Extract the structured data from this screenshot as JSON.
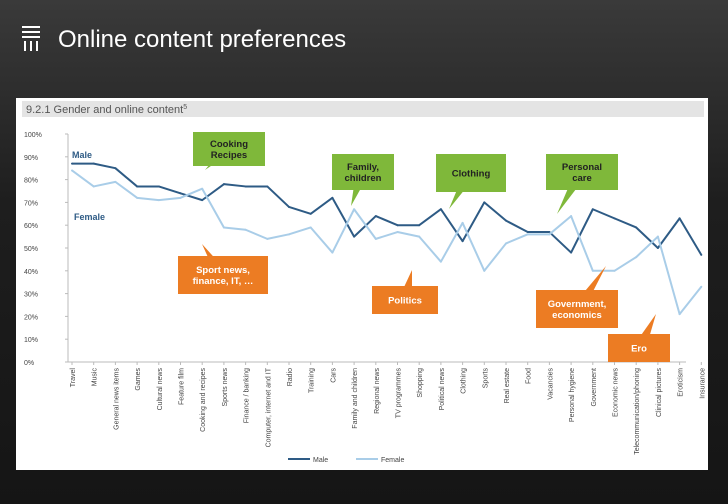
{
  "slide": {
    "title": "Online content preferences"
  },
  "chart_data": {
    "type": "line",
    "title": "9.2.1 Gender and online content",
    "title_sup": "5",
    "ylim": [
      0,
      100
    ],
    "y_ticks": [
      "0%",
      "10%",
      "20%",
      "30%",
      "40%",
      "50%",
      "60%",
      "70%",
      "80%",
      "90%",
      "100%"
    ],
    "grid": false,
    "legend_position": "bottom",
    "categories": [
      "Travel",
      "Music",
      "General news items",
      "Games",
      "Cultural news",
      "Feature film",
      "Cooking and recipes",
      "Sports news",
      "Finance / banking",
      "Computer, internet and IT",
      "Radio",
      "Training",
      "Cars",
      "Family and children",
      "Regional news",
      "TV programmes",
      "Shopping",
      "Political news",
      "Clothing",
      "Sports",
      "Real estate",
      "Food",
      "Vacancies",
      "Personal hygiene",
      "Government",
      "Economic news",
      "Telecommunication/phoning",
      "Clinical pictures",
      "Eroticism",
      "Insurance"
    ],
    "series": [
      {
        "name": "Male",
        "color": "#2e5b85",
        "values": [
          87,
          87,
          85,
          77,
          77,
          74,
          71,
          78,
          77,
          77,
          68,
          65,
          72,
          55,
          64,
          60,
          60,
          67,
          53,
          70,
          62,
          57,
          57,
          48,
          67,
          63,
          59,
          50,
          63,
          47
        ]
      },
      {
        "name": "Female",
        "color": "#a9cde8",
        "values": [
          84,
          77,
          79,
          72,
          71,
          72,
          76,
          59,
          58,
          54,
          56,
          59,
          48,
          67,
          54,
          57,
          55,
          44,
          61,
          40,
          52,
          56,
          56,
          64,
          40,
          40,
          46,
          55,
          21,
          33
        ]
      }
    ],
    "series_labels": [
      {
        "text": "Male"
      },
      {
        "text": "Female"
      }
    ],
    "annotations": [
      {
        "lines": [
          "Cooking",
          "Recipes"
        ]
      },
      {
        "lines": [
          "Family,",
          "children"
        ]
      },
      {
        "lines": [
          "Clothing"
        ]
      },
      {
        "lines": [
          "Personal",
          "care"
        ]
      },
      {
        "lines": [
          "Sport news,",
          "finance, IT, …"
        ]
      },
      {
        "lines": [
          "Politics"
        ]
      },
      {
        "lines": [
          "Government,",
          "economics"
        ]
      },
      {
        "lines": [
          "Ero"
        ]
      }
    ]
  },
  "colors": {
    "annotation_green": "#7fb83a",
    "annotation_orange": "#ec7c23",
    "label_text": "#2e5b85"
  }
}
